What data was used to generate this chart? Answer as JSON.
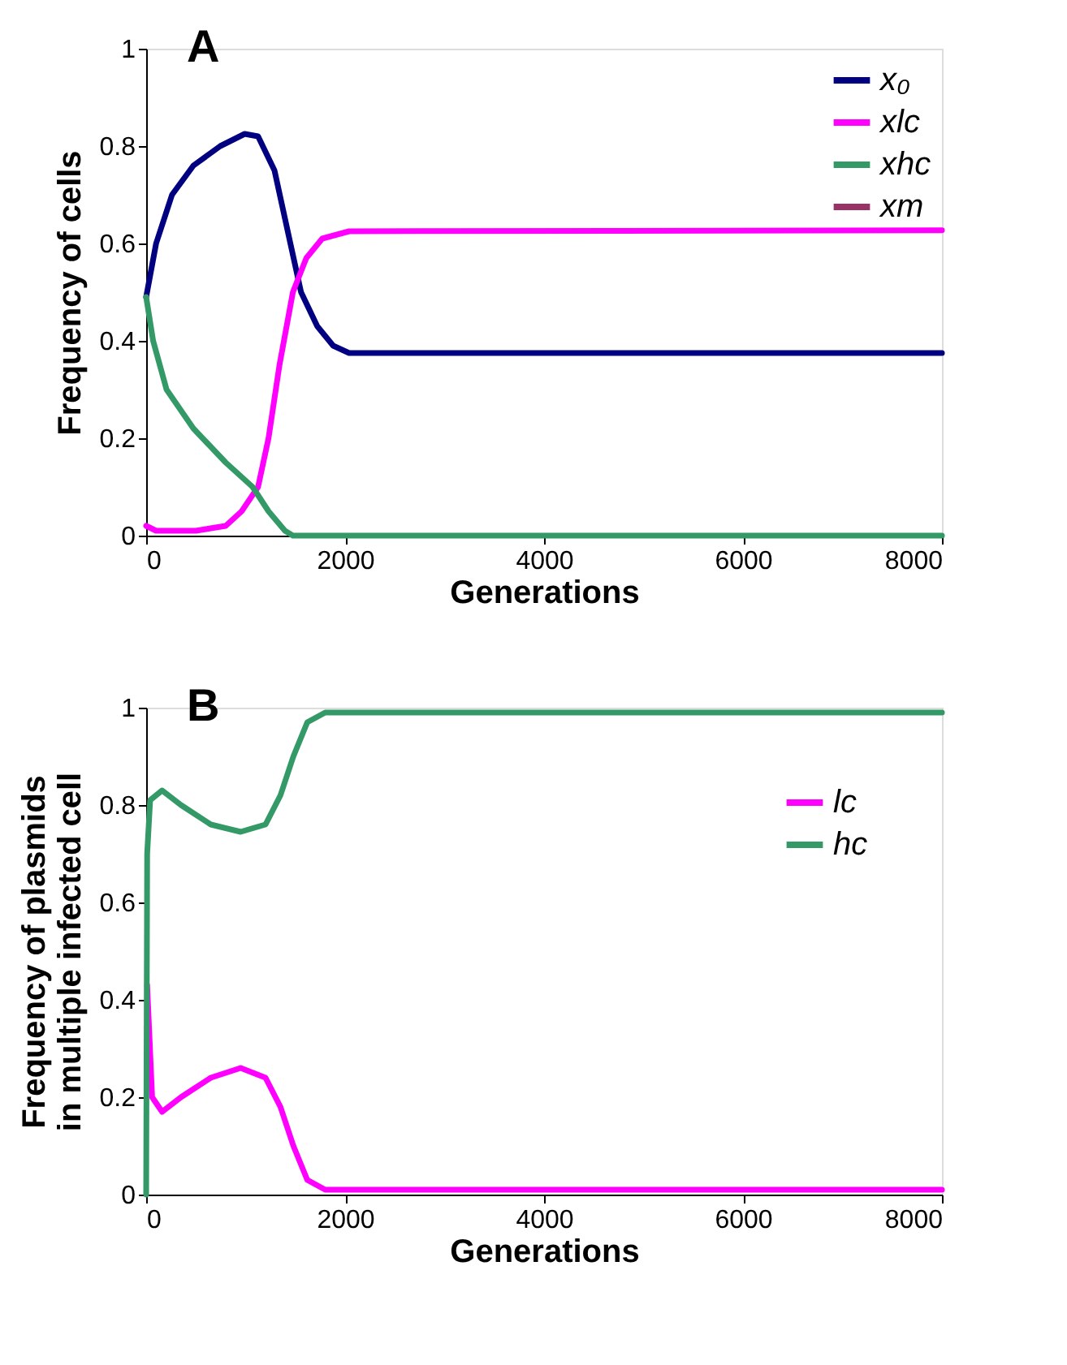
{
  "chart_data": [
    {
      "type": "line",
      "title": "A",
      "xlabel": "Generations",
      "ylabel": "Frequency of cells",
      "xlim": [
        0,
        8000
      ],
      "ylim": [
        0,
        1
      ],
      "xticks": [
        0,
        2000,
        4000,
        6000,
        8000
      ],
      "yticks": [
        0,
        0.2,
        0.4,
        0.6,
        0.8,
        1
      ],
      "grid": false,
      "legend": "top right",
      "marker": "none",
      "line_style": "solid",
      "series": [
        {
          "name": "x₀",
          "color": "#000080",
          "x": [
            0,
            100,
            260,
            475,
            745,
            990,
            1125,
            1290,
            1450,
            1557,
            1720,
            1880,
            2040,
            8000
          ],
          "values": [
            0.49,
            0.6,
            0.7,
            0.76,
            0.8,
            0.825,
            0.82,
            0.75,
            0.6,
            0.5,
            0.43,
            0.39,
            0.375,
            0.375
          ]
        },
        {
          "name": "xlc",
          "color": "#ff00ff",
          "x": [
            0,
            100,
            500,
            800,
            960,
            1125,
            1230,
            1340,
            1475,
            1610,
            1770,
            2040,
            8000
          ],
          "values": [
            0.02,
            0.01,
            0.01,
            0.02,
            0.05,
            0.1,
            0.2,
            0.35,
            0.5,
            0.57,
            0.61,
            0.625,
            0.627
          ]
        },
        {
          "name": "xhc",
          "color": "#339966",
          "x": [
            0,
            70,
            205,
            475,
            800,
            1070,
            1230,
            1395,
            1475,
            8000
          ],
          "values": [
            0.49,
            0.4,
            0.3,
            0.22,
            0.15,
            0.1,
            0.05,
            0.01,
            0,
            0
          ]
        },
        {
          "name": "xm",
          "color": "#993366"
        }
      ]
    },
    {
      "type": "line",
      "title": "B",
      "xlabel": "Generations",
      "ylabel": "Frequency of plasmids\nin multiple infected cell",
      "xlim": [
        0,
        8000
      ],
      "ylim": [
        0,
        1
      ],
      "xticks": [
        0,
        2000,
        4000,
        6000,
        8000
      ],
      "yticks": [
        0,
        0.2,
        0.4,
        0.6,
        0.8,
        1
      ],
      "grid": false,
      "legend": "top right",
      "marker": "none",
      "line_style": "solid",
      "series": [
        {
          "name": "lc",
          "color": "#ff00ff",
          "x": [
            10,
            60,
            160,
            350,
            650,
            950,
            1200,
            1350,
            1480,
            1620,
            1800,
            8000
          ],
          "values": [
            0.43,
            0.2,
            0.17,
            0.2,
            0.24,
            0.26,
            0.24,
            0.18,
            0.1,
            0.03,
            0.01,
            0.01
          ]
        },
        {
          "name": "hc",
          "color": "#339966",
          "x": [
            0,
            10,
            40,
            160,
            350,
            650,
            950,
            1200,
            1350,
            1480,
            1620,
            1800,
            8000
          ],
          "values": [
            0,
            0.7,
            0.81,
            0.83,
            0.8,
            0.76,
            0.745,
            0.76,
            0.82,
            0.9,
            0.97,
            0.99,
            0.99
          ]
        }
      ]
    }
  ]
}
